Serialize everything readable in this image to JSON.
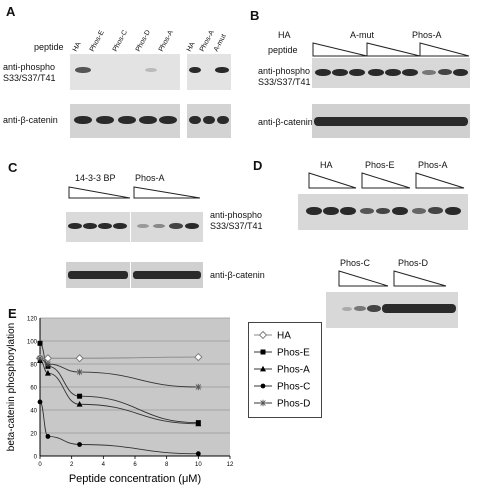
{
  "panels": {
    "A": {
      "letter": "A",
      "row_label": "peptide",
      "lanes_left": [
        "HA",
        "Phos-E",
        "Phos-C",
        "Phos-D",
        "Phos-A"
      ],
      "lanes_right": [
        "HA",
        "Phos-A",
        "A-mut"
      ],
      "blot1_label_line1": "anti-phospho",
      "blot1_label_line2": "S33/S37/T41",
      "blot2_label": "anti-β-catenin"
    },
    "B": {
      "letter": "B",
      "row_label": "peptide",
      "groups": [
        "HA",
        "A-mut",
        "Phos-A"
      ],
      "blot1_label_line1": "anti-phospho",
      "blot1_label_line2": "S33/S37/T41",
      "blot2_label": "anti-β-catenin"
    },
    "C": {
      "letter": "C",
      "groups": [
        "14-3-3 BP",
        "Phos-A"
      ],
      "blot1_label_line1": "anti-phospho",
      "blot1_label_line2": "S33/S37/T41",
      "blot2_label": "anti-β-catenin"
    },
    "D": {
      "letter": "D",
      "groups_top": [
        "HA",
        "Phos-E",
        "Phos-A"
      ],
      "groups_bottom": [
        "Phos-C",
        "Phos-D"
      ]
    },
    "E": {
      "letter": "E"
    }
  },
  "chart_data": {
    "type": "line",
    "xlabel": "Peptide concentration (μM)",
    "ylabel": "beta-catenin phosphorylation",
    "xlim": [
      0,
      12
    ],
    "ylim": [
      0,
      120
    ],
    "xticks": [
      0,
      2,
      4,
      6,
      8,
      10,
      12
    ],
    "yticks": [
      0,
      20,
      40,
      60,
      80,
      100,
      120
    ],
    "grid": true,
    "legend_position": "right",
    "series": [
      {
        "name": "HA",
        "marker": "diamond-open",
        "x": [
          0,
          0.5,
          2.5,
          10
        ],
        "y": [
          85,
          85,
          85,
          86
        ]
      },
      {
        "name": "Phos-E",
        "marker": "square",
        "x": [
          0,
          0.5,
          2.5,
          10
        ],
        "y": [
          98,
          78,
          52,
          29
        ]
      },
      {
        "name": "Phos-A",
        "marker": "triangle",
        "x": [
          0,
          0.5,
          2.5,
          10
        ],
        "y": [
          83,
          72,
          45,
          28
        ]
      },
      {
        "name": "Phos-C",
        "marker": "circle",
        "x": [
          0,
          0.5,
          2.5,
          10
        ],
        "y": [
          47,
          17,
          10,
          2
        ]
      },
      {
        "name": "Phos-D",
        "marker": "star",
        "x": [
          0,
          0.5,
          2.5,
          10
        ],
        "y": [
          85,
          80,
          73,
          60
        ]
      }
    ]
  }
}
